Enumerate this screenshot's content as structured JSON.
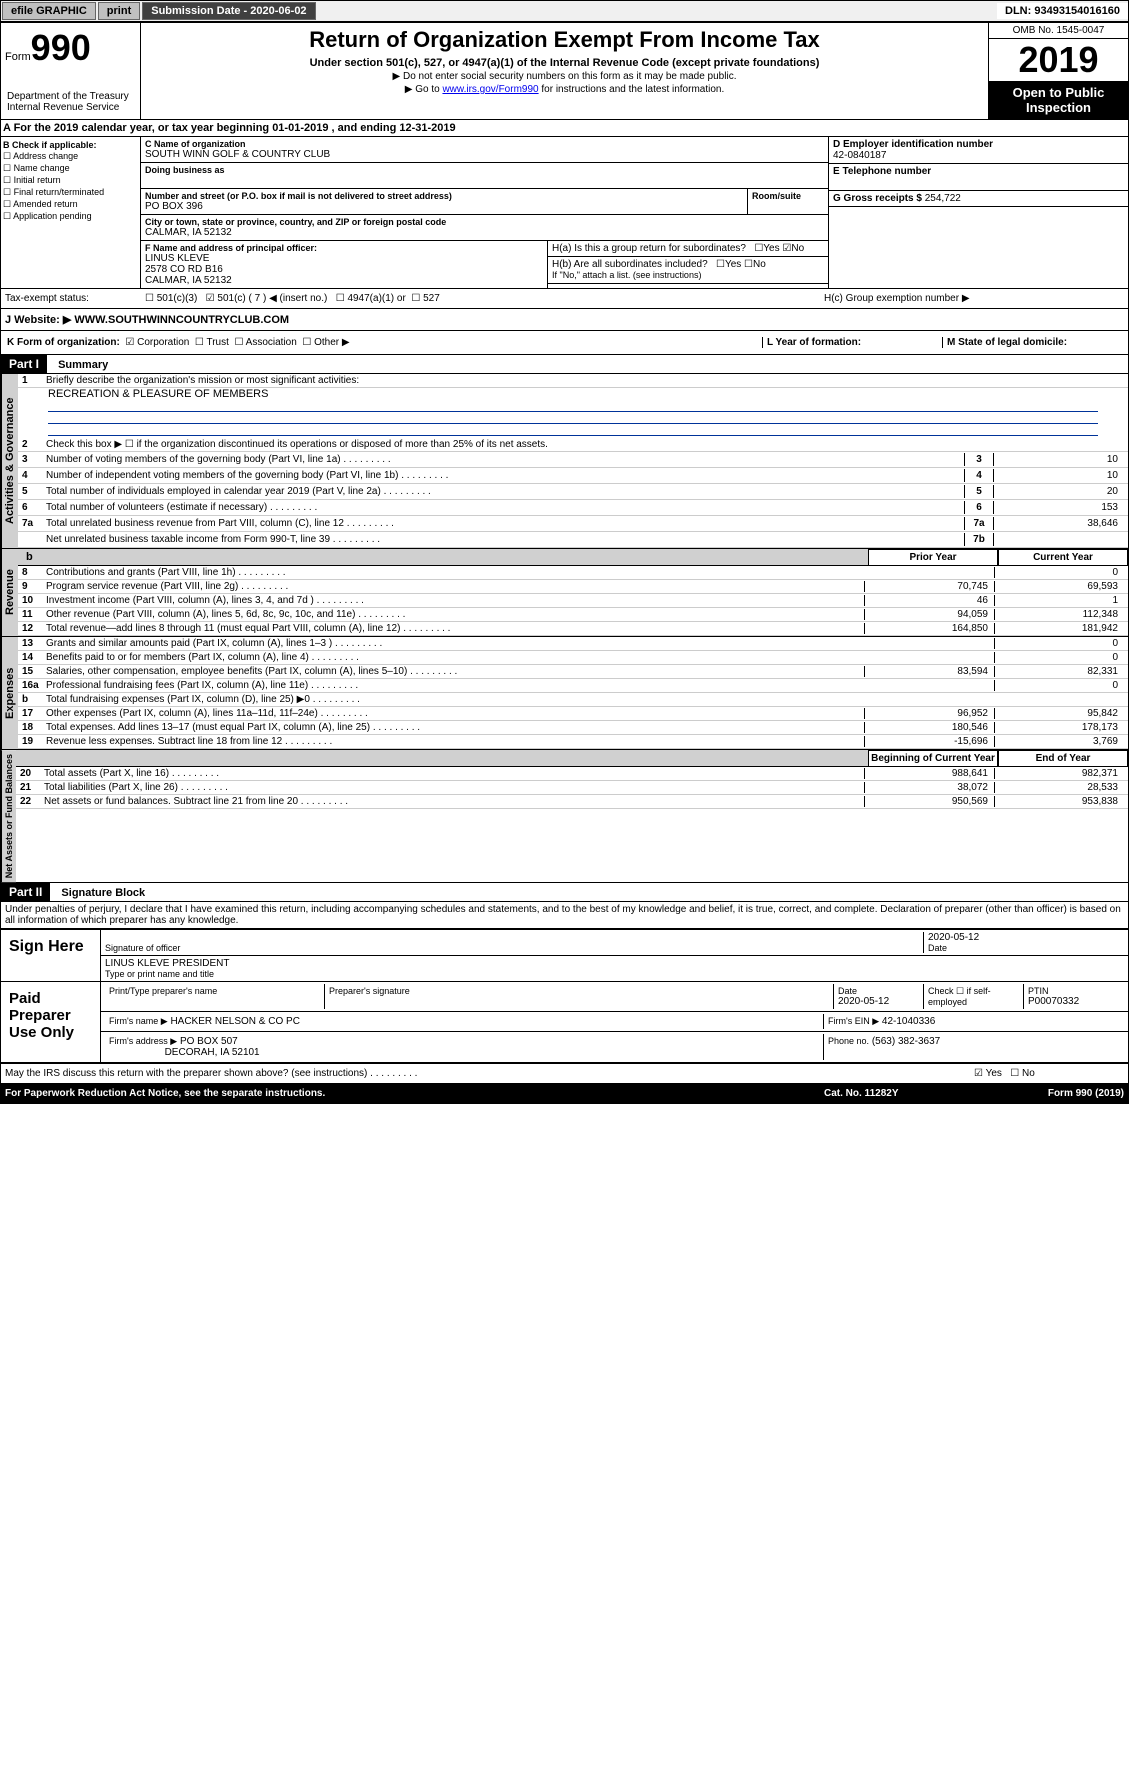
{
  "topbar": {
    "efile": "efile GRAPHIC",
    "print": "print",
    "subdate_label": "Submission Date - ",
    "subdate": "2020-06-02",
    "dln_label": "DLN: ",
    "dln": "93493154016160"
  },
  "header": {
    "form_label": "Form",
    "form_num": "990",
    "title": "Return of Organization Exempt From Income Tax",
    "subtitle": "Under section 501(c), 527, or 4947(a)(1) of the Internal Revenue Code (except private foundations)",
    "note1": "▶ Do not enter social security numbers on this form as it may be made public.",
    "note2_pre": "▶ Go to ",
    "note2_link": "www.irs.gov/Form990",
    "note2_post": " for instructions and the latest information.",
    "omb": "OMB No. 1545-0047",
    "year": "2019",
    "open": "Open to Public Inspection",
    "dept": "Department of the Treasury Internal Revenue Service"
  },
  "lineA": "A For the 2019 calendar year, or tax year beginning 01-01-2019     , and ending 12-31-2019",
  "boxB": {
    "label": "B Check if applicable:",
    "items": [
      "Address change",
      "Name change",
      "Initial return",
      "Final return/terminated",
      "Amended return",
      "Application pending"
    ]
  },
  "boxC": {
    "name_label": "C Name of organization",
    "name": "SOUTH WINN GOLF & COUNTRY CLUB",
    "dba_label": "Doing business as",
    "addr_label": "Number and street (or P.O. box if mail is not delivered to street address)",
    "room_label": "Room/suite",
    "addr": "PO BOX 396",
    "city_label": "City or town, state or province, country, and ZIP or foreign postal code",
    "city": "CALMAR, IA  52132"
  },
  "boxD": {
    "label": "D Employer identification number",
    "val": "42-0840187"
  },
  "boxE": {
    "label": "E Telephone number",
    "val": ""
  },
  "boxG": {
    "label": "G Gross receipts $ ",
    "val": "254,722"
  },
  "boxF": {
    "label": "F  Name and address of principal officer:",
    "name": "LINUS KLEVE",
    "addr1": "2578 CO RD B16",
    "addr2": "CALMAR, IA  52132"
  },
  "boxH": {
    "a": "H(a)  Is this a group return for subordinates?",
    "b": "H(b)  Are all subordinates included?",
    "b_note": "If \"No,\" attach a list. (see instructions)",
    "c": "H(c)  Group exemption number ▶"
  },
  "taxstatus": {
    "label": "Tax-exempt status:",
    "c3": "501(c)(3)",
    "c": "501(c) ( 7 ) ◀ (insert no.)",
    "a1": "4947(a)(1) or",
    "s527": "527"
  },
  "website": {
    "label": "J   Website: ▶  ",
    "val": "WWW.SOUTHWINNCOUNTRYCLUB.COM"
  },
  "boxK": {
    "label": "K Form of organization:",
    "corp": "Corporation",
    "trust": "Trust",
    "assoc": "Association",
    "other": "Other ▶",
    "L": "L Year of formation:",
    "M": "M State of legal domicile:"
  },
  "part1": {
    "header": "Part I",
    "title": "Summary",
    "line1": "Briefly describe the organization's mission or most significant activities:",
    "mission": "RECREATION & PLEASURE OF MEMBERS",
    "line2": "Check this box ▶ ☐  if the organization discontinued its operations or disposed of more than 25% of its net assets.",
    "tabs": {
      "gov": "Activities & Governance",
      "rev": "Revenue",
      "exp": "Expenses",
      "net": "Net Assets or Fund Balances"
    },
    "cols": {
      "prior": "Prior Year",
      "current": "Current Year",
      "beg": "Beginning of Current Year",
      "end": "End of Year"
    },
    "lines": [
      {
        "n": "3",
        "t": "Number of voting members of the governing body (Part VI, line 1a)",
        "box": "3",
        "v": "10"
      },
      {
        "n": "4",
        "t": "Number of independent voting members of the governing body (Part VI, line 1b)",
        "box": "4",
        "v": "10"
      },
      {
        "n": "5",
        "t": "Total number of individuals employed in calendar year 2019 (Part V, line 2a)",
        "box": "5",
        "v": "20"
      },
      {
        "n": "6",
        "t": "Total number of volunteers (estimate if necessary)",
        "box": "6",
        "v": "153"
      },
      {
        "n": "7a",
        "t": "Total unrelated business revenue from Part VIII, column (C), line 12",
        "box": "7a",
        "v": "38,646"
      },
      {
        "n": "",
        "t": "Net unrelated business taxable income from Form 990-T, line 39",
        "box": "7b",
        "v": ""
      }
    ],
    "revlines": [
      {
        "n": "8",
        "t": "Contributions and grants (Part VIII, line 1h)",
        "p": "",
        "c": "0"
      },
      {
        "n": "9",
        "t": "Program service revenue (Part VIII, line 2g)",
        "p": "70,745",
        "c": "69,593"
      },
      {
        "n": "10",
        "t": "Investment income (Part VIII, column (A), lines 3, 4, and 7d )",
        "p": "46",
        "c": "1"
      },
      {
        "n": "11",
        "t": "Other revenue (Part VIII, column (A), lines 5, 6d, 8c, 9c, 10c, and 11e)",
        "p": "94,059",
        "c": "112,348"
      },
      {
        "n": "12",
        "t": "Total revenue—add lines 8 through 11 (must equal Part VIII, column (A), line 12)",
        "p": "164,850",
        "c": "181,942"
      }
    ],
    "explines": [
      {
        "n": "13",
        "t": "Grants and similar amounts paid (Part IX, column (A), lines 1–3 )",
        "p": "",
        "c": "0"
      },
      {
        "n": "14",
        "t": "Benefits paid to or for members (Part IX, column (A), line 4)",
        "p": "",
        "c": "0"
      },
      {
        "n": "15",
        "t": "Salaries, other compensation, employee benefits (Part IX, column (A), lines 5–10)",
        "p": "83,594",
        "c": "82,331"
      },
      {
        "n": "16a",
        "t": "Professional fundraising fees (Part IX, column (A), line 11e)",
        "p": "",
        "c": "0"
      },
      {
        "n": "b",
        "t": "Total fundraising expenses (Part IX, column (D), line 25) ▶0",
        "p": "",
        "c": ""
      },
      {
        "n": "17",
        "t": "Other expenses (Part IX, column (A), lines 11a–11d, 11f–24e)",
        "p": "96,952",
        "c": "95,842"
      },
      {
        "n": "18",
        "t": "Total expenses. Add lines 13–17 (must equal Part IX, column (A), line 25)",
        "p": "180,546",
        "c": "178,173"
      },
      {
        "n": "19",
        "t": "Revenue less expenses. Subtract line 18 from line 12",
        "p": "-15,696",
        "c": "3,769"
      }
    ],
    "netlines": [
      {
        "n": "20",
        "t": "Total assets (Part X, line 16)",
        "p": "988,641",
        "c": "982,371"
      },
      {
        "n": "21",
        "t": "Total liabilities (Part X, line 26)",
        "p": "38,072",
        "c": "28,533"
      },
      {
        "n": "22",
        "t": "Net assets or fund balances. Subtract line 21 from line 20",
        "p": "950,569",
        "c": "953,838"
      }
    ]
  },
  "part2": {
    "header": "Part II",
    "title": "Signature Block",
    "declaration": "Under penalties of perjury, I declare that I have examined this return, including accompanying schedules and statements, and to the best of my knowledge and belief, it is true, correct, and complete. Declaration of preparer (other than officer) is based on all information of which preparer has any knowledge.",
    "sign_here": "Sign Here",
    "sig_officer": "Signature of officer",
    "date": "Date",
    "sig_date": "2020-05-12",
    "officer_name": "LINUS KLEVE  PRESIDENT",
    "type_name": "Type or print name and title",
    "paid": "Paid Preparer Use Only",
    "prep_name_label": "Print/Type preparer's name",
    "prep_sig_label": "Preparer's signature",
    "prep_date": "2020-05-12",
    "check_self": "Check ☐ if self-employed",
    "ptin_label": "PTIN",
    "ptin": "P00070332",
    "firm_name_label": "Firm's name      ▶",
    "firm_name": "HACKER NELSON & CO PC",
    "firm_ein_label": "Firm's EIN ▶",
    "firm_ein": "42-1040336",
    "firm_addr_label": "Firm's address ▶",
    "firm_addr": "PO BOX 507",
    "firm_city": "DECORAH, IA  52101",
    "phone_label": "Phone no.",
    "phone": "(563) 382-3637",
    "may_irs": "May the IRS discuss this return with the preparer shown above? (see instructions)",
    "yes": "Yes",
    "no": "No"
  },
  "footer": {
    "pra": "For Paperwork Reduction Act Notice, see the separate instructions.",
    "cat": "Cat. No. 11282Y",
    "form": "Form 990 (2019)"
  }
}
